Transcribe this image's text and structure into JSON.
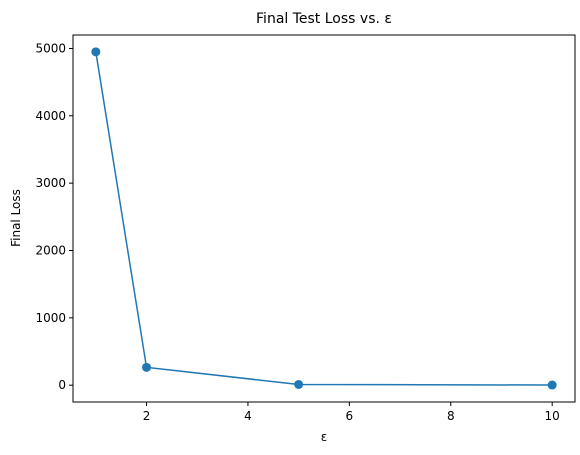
{
  "chart_data": {
    "type": "line",
    "title": "Final Test Loss vs. ε",
    "xlabel": "ε",
    "ylabel": "Final Loss",
    "x": [
      1,
      2,
      5,
      10
    ],
    "series": [
      {
        "values": [
          4950,
          265,
          10,
          2
        ],
        "color": "#1f77b4",
        "marker": "circle"
      }
    ],
    "xlim": [
      0.55,
      10.45
    ],
    "ylim": [
      -250,
      5200
    ],
    "xticks": [
      2,
      4,
      6,
      8,
      10
    ],
    "yticks": [
      0,
      1000,
      2000,
      3000,
      4000,
      5000
    ],
    "grid": false,
    "legend": "none"
  }
}
